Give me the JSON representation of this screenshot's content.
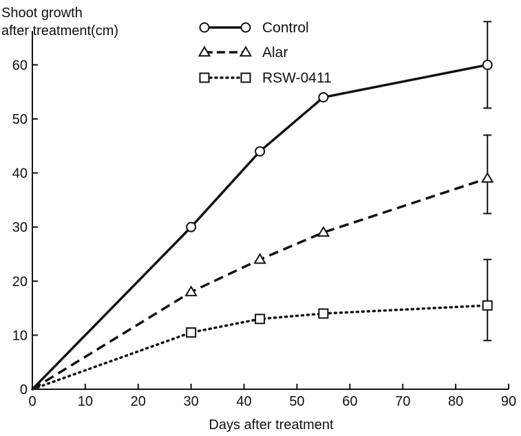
{
  "chart_data": {
    "type": "line",
    "ylabel_lines": [
      "Shoot growth",
      "after treatment(cm)"
    ],
    "xlabel": "Days after treatment",
    "xlim": [
      0,
      90
    ],
    "ylim": [
      0,
      65
    ],
    "xticks": [
      0,
      10,
      20,
      30,
      40,
      50,
      60,
      70,
      80,
      90
    ],
    "yticks": [
      0,
      10,
      20,
      30,
      40,
      50,
      60
    ],
    "legend_position": "top-center",
    "series": [
      {
        "name": "Control",
        "marker": "circle",
        "line_style": "solid",
        "x": [
          0,
          30,
          43,
          55,
          86
        ],
        "y": [
          0,
          30,
          44,
          54,
          60
        ],
        "error_bars": [
          {
            "x": 86,
            "low": 52,
            "high": 68
          }
        ]
      },
      {
        "name": "Alar",
        "marker": "triangle",
        "line_style": "dashed",
        "x": [
          0,
          30,
          43,
          55,
          86
        ],
        "y": [
          0,
          18,
          24,
          29,
          39
        ],
        "error_bars": [
          {
            "x": 86,
            "low": 32.5,
            "high": 47
          }
        ]
      },
      {
        "name": "RSW-0411",
        "marker": "square",
        "line_style": "dotted",
        "x": [
          0,
          30,
          43,
          55,
          86
        ],
        "y": [
          0,
          10.5,
          13,
          14,
          15.5
        ],
        "error_bars": [
          {
            "x": 86,
            "low": 9,
            "high": 24
          }
        ]
      }
    ]
  }
}
